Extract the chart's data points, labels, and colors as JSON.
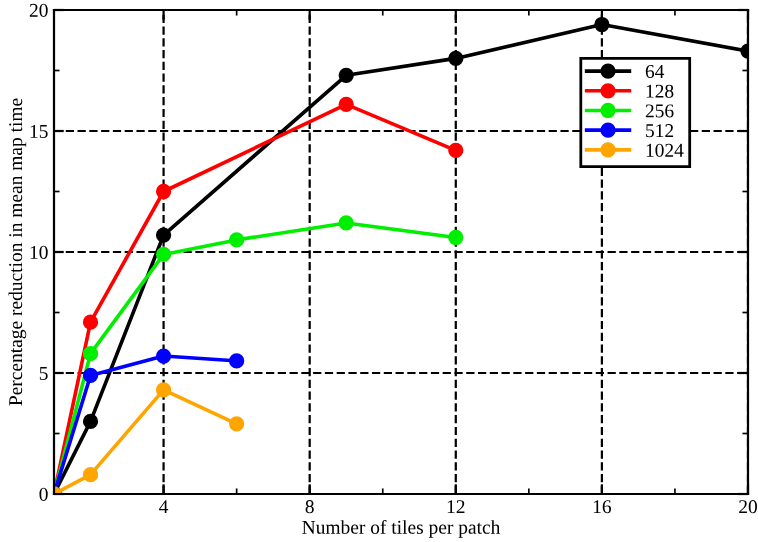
{
  "chart_data": {
    "type": "line",
    "xlabel": "Number of tiles per patch",
    "ylabel": "Percentage reduction in mean map time",
    "xlim": [
      1,
      20
    ],
    "ylim": [
      0,
      20
    ],
    "xticks": [
      4,
      8,
      12,
      16,
      20
    ],
    "yticks": [
      0,
      5,
      10,
      15,
      20
    ],
    "grid": true,
    "legend": "top right",
    "marker": "circle",
    "line_style": "solid",
    "series": [
      {
        "name": "64",
        "color": "#000000",
        "x": [
          1,
          2,
          4,
          9,
          12,
          16,
          20
        ],
        "values": [
          0,
          3.0,
          10.7,
          17.3,
          18.0,
          19.4,
          18.3
        ]
      },
      {
        "name": "128",
        "color": "#ff0000",
        "x": [
          1,
          2,
          4,
          9,
          12
        ],
        "values": [
          0,
          7.1,
          12.5,
          16.1,
          14.2
        ]
      },
      {
        "name": "256",
        "color": "#00ee00",
        "x": [
          1,
          2,
          4,
          6,
          9,
          12
        ],
        "values": [
          0,
          5.8,
          9.9,
          10.5,
          11.2,
          10.6
        ]
      },
      {
        "name": "512",
        "color": "#0000ff",
        "x": [
          1,
          2,
          4,
          6
        ],
        "values": [
          0,
          4.9,
          5.7,
          5.5
        ]
      },
      {
        "name": "1024",
        "color": "#ffa500",
        "x": [
          1,
          2,
          4,
          6
        ],
        "values": [
          0,
          0.8,
          4.3,
          2.9
        ]
      }
    ]
  }
}
